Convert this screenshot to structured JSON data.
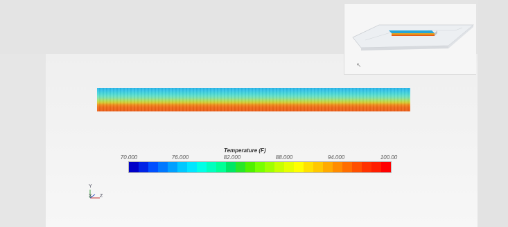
{
  "legend": {
    "title": "Temperature (F)",
    "ticks": [
      "70.000",
      "76.000",
      "82.000",
      "88.000",
      "94.000",
      "100.00"
    ],
    "colors": [
      "#0000c8",
      "#0023e6",
      "#0050ff",
      "#0078ff",
      "#00a0ff",
      "#00c8ff",
      "#00e6ff",
      "#00ffe6",
      "#00ffbe",
      "#00ff96",
      "#00e664",
      "#28e628",
      "#50f000",
      "#78ff00",
      "#a0ff00",
      "#c8ff00",
      "#e6ff00",
      "#ffff00",
      "#ffe100",
      "#ffc800",
      "#ffaa00",
      "#ff8c00",
      "#ff6e00",
      "#ff5000",
      "#ff3200",
      "#ff1e00",
      "#ff0000"
    ]
  },
  "triad": {
    "y": "Y",
    "x": "X",
    "z": "Z"
  },
  "colors": {
    "background": "#e6e6e6",
    "viewport": "#f4f4f4"
  }
}
